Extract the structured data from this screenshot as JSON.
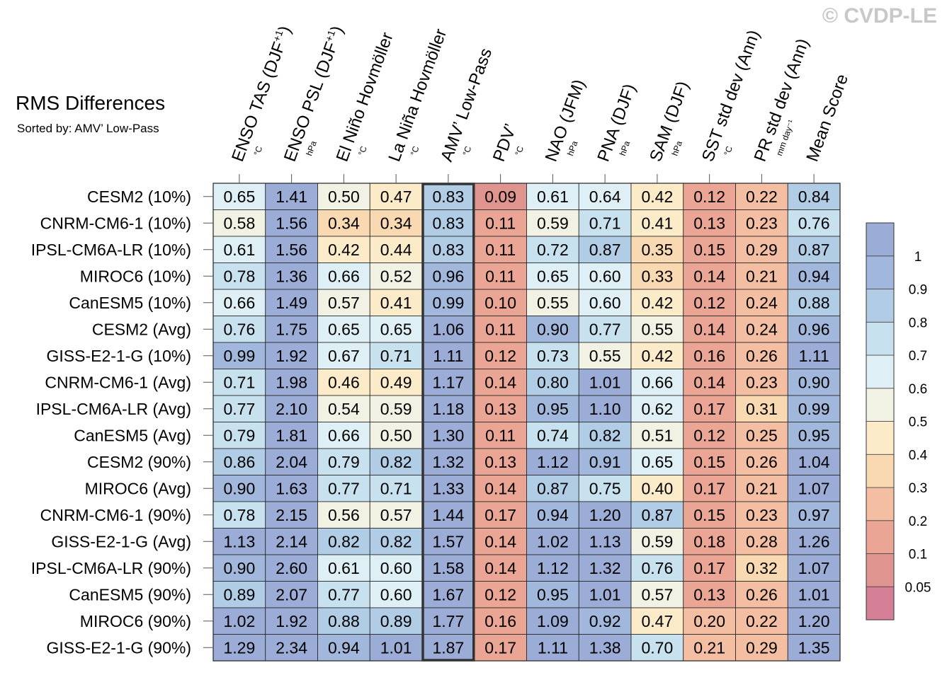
{
  "watermark": "© CVDP-LE",
  "chart_data": {
    "type": "heatmap",
    "title": "RMS Differences",
    "subtitle": "Sorted by: AMV’ Low-Pass",
    "columns": [
      {
        "name": "ENSO TAS (DJF",
        "sup": "+1",
        "close": ")",
        "unit": "°C"
      },
      {
        "name": "ENSO PSL (DJF",
        "sup": "+1",
        "close": ")",
        "unit": "hPa"
      },
      {
        "name": "El Niño Hovmöller",
        "sup": "",
        "close": "",
        "unit": "°C"
      },
      {
        "name": "La Niña Hovmöller",
        "sup": "",
        "close": "",
        "unit": "°C"
      },
      {
        "name": "AMV’ Low-Pass",
        "sup": "",
        "close": "",
        "unit": "°C"
      },
      {
        "name": "PDV’",
        "sup": "",
        "close": "",
        "unit": "°C"
      },
      {
        "name": "NAO (JFM)",
        "sup": "",
        "close": "",
        "unit": "hPa"
      },
      {
        "name": "PNA (DJF)",
        "sup": "",
        "close": "",
        "unit": "hPa"
      },
      {
        "name": "SAM (DJF)",
        "sup": "",
        "close": "",
        "unit": "hPa"
      },
      {
        "name": "SST std dev (Ann)",
        "sup": "",
        "close": "",
        "unit": "°C"
      },
      {
        "name": "PR std dev (Ann)",
        "sup": "",
        "close": "",
        "unit": "mm day⁻¹"
      },
      {
        "name": "Mean Score",
        "sup": "",
        "close": "",
        "unit": ""
      }
    ],
    "rows": [
      "CESM2 (10%)",
      "CNRM-CM6-1 (10%)",
      "IPSL-CM6A-LR (10%)",
      "MIROC6 (10%)",
      "CanESM5 (10%)",
      "CESM2 (Avg)",
      "GISS-E2-1-G (10%)",
      "CNRM-CM6-1 (Avg)",
      "IPSL-CM6A-LR (Avg)",
      "CanESM5 (Avg)",
      "CESM2 (90%)",
      "MIROC6 (Avg)",
      "CNRM-CM6-1 (90%)",
      "GISS-E2-1-G (Avg)",
      "IPSL-CM6A-LR (90%)",
      "CanESM5 (90%)",
      "MIROC6 (90%)",
      "GISS-E2-1-G (90%)"
    ],
    "values": [
      [
        "0.65",
        "1.41",
        "0.50",
        "0.47",
        "0.83",
        "0.09",
        "0.61",
        "0.64",
        "0.42",
        "0.12",
        "0.22",
        "0.84"
      ],
      [
        "0.58",
        "1.56",
        "0.34",
        "0.34",
        "0.83",
        "0.11",
        "0.59",
        "0.71",
        "0.41",
        "0.13",
        "0.23",
        "0.76"
      ],
      [
        "0.61",
        "1.56",
        "0.42",
        "0.44",
        "0.83",
        "0.11",
        "0.72",
        "0.87",
        "0.35",
        "0.15",
        "0.29",
        "0.87"
      ],
      [
        "0.78",
        "1.36",
        "0.66",
        "0.52",
        "0.96",
        "0.11",
        "0.65",
        "0.60",
        "0.33",
        "0.14",
        "0.21",
        "0.94"
      ],
      [
        "0.66",
        "1.49",
        "0.57",
        "0.41",
        "0.99",
        "0.10",
        "0.55",
        "0.60",
        "0.42",
        "0.12",
        "0.24",
        "0.88"
      ],
      [
        "0.76",
        "1.75",
        "0.65",
        "0.65",
        "1.06",
        "0.11",
        "0.90",
        "0.77",
        "0.55",
        "0.14",
        "0.24",
        "0.96"
      ],
      [
        "0.99",
        "1.92",
        "0.67",
        "0.71",
        "1.11",
        "0.12",
        "0.73",
        "0.55",
        "0.42",
        "0.16",
        "0.26",
        "1.11"
      ],
      [
        "0.71",
        "1.98",
        "0.46",
        "0.49",
        "1.17",
        "0.14",
        "0.80",
        "1.01",
        "0.66",
        "0.14",
        "0.23",
        "0.90"
      ],
      [
        "0.77",
        "2.10",
        "0.54",
        "0.59",
        "1.18",
        "0.13",
        "0.95",
        "1.10",
        "0.62",
        "0.17",
        "0.31",
        "0.99"
      ],
      [
        "0.79",
        "1.81",
        "0.66",
        "0.50",
        "1.30",
        "0.11",
        "0.74",
        "0.82",
        "0.51",
        "0.12",
        "0.25",
        "0.95"
      ],
      [
        "0.86",
        "2.04",
        "0.79",
        "0.82",
        "1.32",
        "0.13",
        "1.12",
        "0.91",
        "0.65",
        "0.15",
        "0.26",
        "1.04"
      ],
      [
        "0.90",
        "1.63",
        "0.77",
        "0.71",
        "1.33",
        "0.14",
        "0.87",
        "0.75",
        "0.40",
        "0.17",
        "0.21",
        "1.07"
      ],
      [
        "0.78",
        "2.15",
        "0.56",
        "0.57",
        "1.44",
        "0.17",
        "0.94",
        "1.20",
        "0.87",
        "0.15",
        "0.23",
        "0.97"
      ],
      [
        "1.13",
        "2.14",
        "0.82",
        "0.82",
        "1.57",
        "0.14",
        "1.02",
        "1.13",
        "0.59",
        "0.18",
        "0.28",
        "1.26"
      ],
      [
        "0.90",
        "2.60",
        "0.61",
        "0.60",
        "1.58",
        "0.14",
        "1.12",
        "1.32",
        "0.76",
        "0.17",
        "0.32",
        "1.07"
      ],
      [
        "0.89",
        "2.07",
        "0.77",
        "0.60",
        "1.67",
        "0.12",
        "0.95",
        "1.01",
        "0.57",
        "0.13",
        "0.26",
        "1.01"
      ],
      [
        "1.02",
        "1.92",
        "0.88",
        "0.89",
        "1.77",
        "0.16",
        "1.09",
        "0.92",
        "0.47",
        "0.20",
        "0.22",
        "1.20"
      ],
      [
        "1.29",
        "2.34",
        "0.94",
        "1.01",
        "1.87",
        "0.17",
        "1.11",
        "1.38",
        "0.70",
        "0.21",
        "0.29",
        "1.35"
      ]
    ],
    "highlight_column": "AMV’ Low-Pass",
    "colorbar": {
      "labels": [
        "1",
        "0.9",
        "0.8",
        "0.7",
        "0.6",
        "0.5",
        "0.4",
        "0.3",
        "0.2",
        "0.1",
        "0.05"
      ],
      "bounds": [
        0,
        0.05,
        0.1,
        0.2,
        0.3,
        0.4,
        0.5,
        0.6,
        0.7,
        0.8,
        0.9,
        1
      ],
      "colors": [
        "#d47f95",
        "#e09490",
        "#eaa594",
        "#f4bea2",
        "#f9d9b1",
        "#fcebc9",
        "#f2f2e4",
        "#def0f5",
        "#c8e1ef",
        "#b1cde6",
        "#a1b7db",
        "#9badd6"
      ]
    }
  }
}
